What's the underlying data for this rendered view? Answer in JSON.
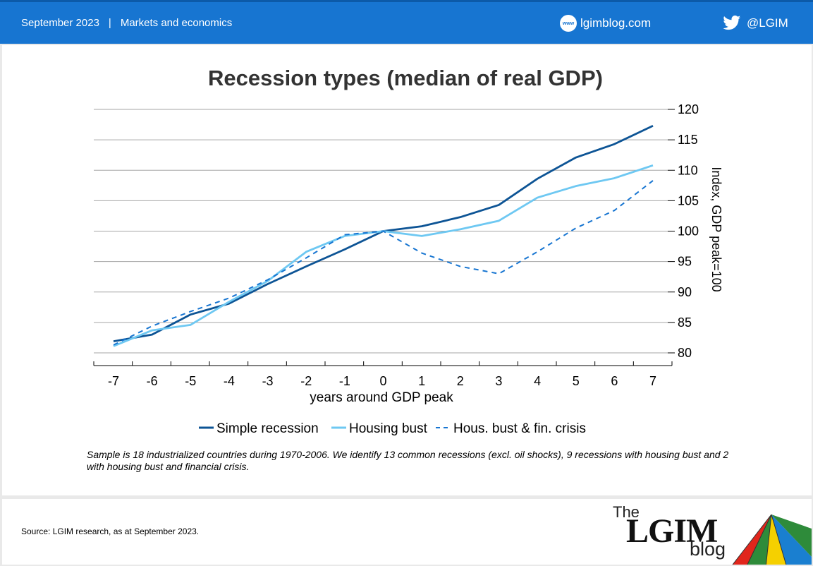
{
  "header": {
    "date": "September 2023",
    "separator": "|",
    "category": "Markets and economics",
    "site_badge": "www",
    "site": "lgimblog.com",
    "twitter": "@LGIM",
    "color": "#1775d1"
  },
  "chart_data": {
    "type": "line",
    "title": "Recession types (median of real GDP)",
    "xlabel": "years around GDP peak",
    "ylabel": "Index, GDP peak=100",
    "x": [
      -7,
      -6,
      -5,
      -4,
      -3,
      -2,
      -1,
      0,
      1,
      2,
      3,
      4,
      5,
      6,
      7
    ],
    "x_tick_labels": [
      "-7",
      "-6",
      "-5",
      "-4",
      "-3",
      "-2",
      "-1",
      "0",
      "1",
      "2",
      "3",
      "4",
      "5",
      "6",
      "7"
    ],
    "ylim": [
      80,
      120
    ],
    "y_ticks": [
      80,
      85,
      90,
      95,
      100,
      105,
      110,
      115,
      120
    ],
    "grid": true,
    "legend_position": "bottom",
    "series": [
      {
        "name": "Simple recession",
        "color": "#0d5495",
        "dash": "solid",
        "values": [
          81.9,
          83.0,
          86.3,
          88.1,
          91.3,
          94.2,
          97.0,
          100.0,
          100.8,
          102.3,
          104.3,
          108.6,
          112.1,
          114.3,
          117.3
        ]
      },
      {
        "name": "Housing bust",
        "color": "#6ec8f2",
        "dash": "solid",
        "values": [
          81.1,
          83.7,
          84.6,
          88.4,
          91.8,
          96.6,
          99.2,
          100.0,
          99.2,
          100.3,
          101.7,
          105.5,
          107.4,
          108.7,
          110.8
        ]
      },
      {
        "name": "Hous. bust & fin. crisis",
        "color": "#1775d1",
        "dash": "dashed",
        "values": [
          81.3,
          84.4,
          86.8,
          89.0,
          92.0,
          95.6,
          99.4,
          100.0,
          96.4,
          94.2,
          93.0,
          96.6,
          100.5,
          103.4,
          108.3
        ]
      }
    ]
  },
  "note": "Sample is 18 industrialized countries during 1970-2006. We identify 13 common recessions (excl. oil shocks), 9 recessions with housing bust and 2 with housing bust and financial crisis.",
  "footer": {
    "source": "Source: LGIM research, as at September 2023.",
    "logo_the": "The",
    "logo_lgim": "LGIM",
    "logo_blog": "blog"
  }
}
